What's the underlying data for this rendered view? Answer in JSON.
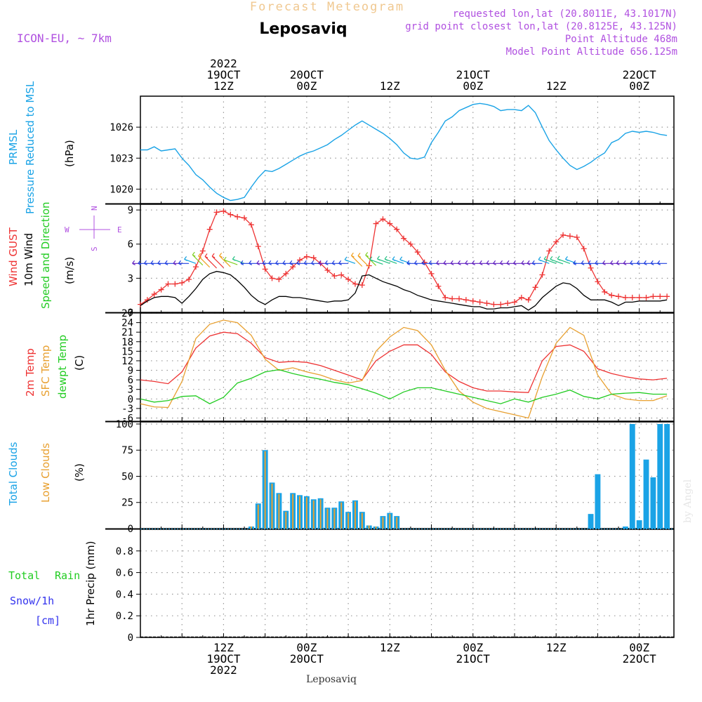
{
  "header": {
    "product": "Forecast Meteogram",
    "model": "ICON-EU, ~ 7km",
    "location": "Leposaviq",
    "requested": "requested lon,lat (20.8011E, 43.1017N)",
    "grid": "grid point closest lon,lat (20.8125E, 43.125N)",
    "point_alt": "Point Altitude 468m",
    "model_alt": "Model Point Altitude 656.125m",
    "footer_location": "Leposaviq",
    "watermark": "by Angel"
  },
  "colors": {
    "pressure": "#1aa3e6",
    "gust": "#ee3333",
    "wind10m": "#000000",
    "temp2m": "#ee3333",
    "sfc_temp": "#e8a030",
    "dewpt": "#22cc22",
    "total_clouds": "#1aa3e6",
    "low_clouds": "#e8a030",
    "rain": "#22cc22",
    "snow": "#3333ee",
    "header_purple": "#b050e0",
    "header_orange": "#f0c890"
  },
  "time_axis": {
    "top_labels": [
      {
        "t": 12,
        "lines": [
          "2022",
          "19OCT",
          "12Z"
        ]
      },
      {
        "t": 24,
        "lines": [
          "20OCT",
          "00Z"
        ]
      },
      {
        "t": 36,
        "lines": [
          "12Z"
        ]
      },
      {
        "t": 48,
        "lines": [
          "21OCT",
          "00Z"
        ]
      },
      {
        "t": 60,
        "lines": [
          "12Z"
        ]
      },
      {
        "t": 72,
        "lines": [
          "22OCT",
          "00Z"
        ]
      }
    ],
    "bottom_labels": [
      {
        "t": 12,
        "lines": [
          "12Z",
          "19OCT",
          "2022"
        ]
      },
      {
        "t": 24,
        "lines": [
          "00Z",
          "20OCT"
        ]
      },
      {
        "t": 36,
        "lines": [
          "12Z"
        ]
      },
      {
        "t": 48,
        "lines": [
          "00Z",
          "21OCT"
        ]
      },
      {
        "t": 60,
        "lines": [
          "12Z"
        ]
      },
      {
        "t": 72,
        "lines": [
          "00Z",
          "22OCT"
        ]
      }
    ],
    "t_range": [
      0,
      77
    ],
    "t_unit": "hours since 19OCT 00Z"
  },
  "panels": {
    "pressure": {
      "labels": [
        "PRMSL",
        "Pressure Reduced to MSL"
      ],
      "unit": "(hPa)",
      "yticks": [
        "1020",
        "1023",
        "1026"
      ]
    },
    "wind": {
      "labels": [
        "Wind GUST",
        "10m Wind",
        "Speed and Direction"
      ],
      "unit": "(m/s)",
      "yticks": [
        "0",
        "3",
        "6",
        "9"
      ],
      "compass_n": "N",
      "compass_s": "S",
      "compass_w": "W",
      "compass_e": "E"
    },
    "temp": {
      "labels": [
        "2m Temp",
        "SFC Temp",
        "dewpt Temp"
      ],
      "unit": "(C)",
      "yticks": [
        "-6",
        "-3",
        "0",
        "3",
        "6",
        "9",
        "12",
        "15",
        "18",
        "21",
        "24",
        "27"
      ]
    },
    "clouds": {
      "labels": [
        "Total Clouds",
        "Low Clouds"
      ],
      "unit": "(%)",
      "yticks": [
        "0",
        "25",
        "50",
        "75",
        "100"
      ]
    },
    "precip": {
      "labels": [
        "Total",
        "Rain",
        "Snow/1h",
        "[cm]"
      ],
      "unit": "1hr Precip (mm)",
      "yticks": [
        "0",
        "0.2",
        "0.4",
        "0.6",
        "0.8"
      ]
    }
  },
  "chart_data": [
    {
      "type": "line",
      "title": "PRMSL Pressure Reduced to MSL",
      "ylabel": "(hPa)",
      "ylim": [
        1018.6,
        1029
      ],
      "series": [
        {
          "name": "PRMSL",
          "color": "#1aa3e6",
          "x": [
            0,
            1,
            2,
            3,
            4,
            5,
            6,
            7,
            8,
            9,
            10,
            11,
            12,
            13,
            14,
            15,
            16,
            17,
            18,
            19,
            20,
            21,
            22,
            23,
            24,
            25,
            26,
            27,
            28,
            29,
            30,
            31,
            32,
            33,
            34,
            35,
            36,
            37,
            38,
            39,
            40,
            41,
            42,
            43,
            44,
            45,
            46,
            47,
            48,
            49,
            50,
            51,
            52,
            53,
            54,
            55,
            56,
            57,
            58,
            59,
            60,
            61,
            62,
            63,
            64,
            65,
            66,
            67,
            68,
            69,
            70,
            71,
            72,
            73,
            74,
            75,
            76
          ],
          "y": [
            1023.8,
            1023.8,
            1024.1,
            1023.7,
            1023.8,
            1023.9,
            1023.0,
            1022.3,
            1021.4,
            1020.9,
            1020.2,
            1019.6,
            1019.2,
            1018.9,
            1019.0,
            1019.2,
            1020.2,
            1021.1,
            1021.8,
            1021.7,
            1022.0,
            1022.4,
            1022.8,
            1023.2,
            1023.5,
            1023.7,
            1024.0,
            1024.3,
            1024.8,
            1025.2,
            1025.7,
            1026.2,
            1026.6,
            1026.2,
            1025.8,
            1025.4,
            1024.9,
            1024.3,
            1023.5,
            1023.0,
            1022.9,
            1023.1,
            1024.5,
            1025.5,
            1026.6,
            1027.0,
            1027.6,
            1027.9,
            1028.2,
            1028.3,
            1028.2,
            1028.0,
            1027.6,
            1027.7,
            1027.7,
            1027.6,
            1028.1,
            1027.4,
            1026.0,
            1024.7,
            1023.8,
            1023.0,
            1022.3,
            1021.9,
            1022.2,
            1022.6,
            1023.1,
            1023.5,
            1024.5,
            1024.8,
            1025.4,
            1025.6,
            1025.5,
            1025.6,
            1025.5,
            1025.3,
            1025.2
          ]
        }
      ]
    },
    {
      "type": "line",
      "title": "Wind GUST / 10m Wind Speed and Direction",
      "ylabel": "(m/s)",
      "ylim": [
        0,
        9.5
      ],
      "series": [
        {
          "name": "Wind GUST",
          "color": "#ee3333",
          "x": [
            0,
            1,
            2,
            3,
            4,
            5,
            6,
            7,
            8,
            9,
            10,
            11,
            12,
            13,
            14,
            15,
            16,
            17,
            18,
            19,
            20,
            21,
            22,
            23,
            24,
            25,
            26,
            27,
            28,
            29,
            30,
            31,
            32,
            33,
            34,
            35,
            36,
            37,
            38,
            39,
            40,
            41,
            42,
            43,
            44,
            45,
            46,
            47,
            48,
            49,
            50,
            51,
            52,
            53,
            54,
            55,
            56,
            57,
            58,
            59,
            60,
            61,
            62,
            63,
            64,
            65,
            66,
            67,
            68,
            69,
            70,
            71,
            72,
            73,
            74,
            75,
            76
          ],
          "y": [
            0.7,
            1.1,
            1.6,
            2.0,
            2.5,
            2.5,
            2.6,
            2.9,
            4.0,
            5.4,
            7.3,
            8.8,
            8.9,
            8.6,
            8.4,
            8.3,
            7.7,
            5.8,
            3.8,
            3.0,
            2.9,
            3.4,
            4.0,
            4.6,
            4.9,
            4.8,
            4.3,
            3.7,
            3.2,
            3.3,
            2.9,
            2.5,
            2.4,
            4.1,
            7.8,
            8.2,
            7.8,
            7.3,
            6.5,
            6.0,
            5.3,
            4.4,
            3.4,
            2.3,
            1.3,
            1.2,
            1.2,
            1.1,
            1.0,
            0.9,
            0.8,
            0.7,
            0.7,
            0.8,
            0.9,
            1.3,
            1.1,
            2.2,
            3.3,
            5.4,
            6.2,
            6.8,
            6.7,
            6.6,
            5.6,
            3.9,
            2.7,
            1.8,
            1.5,
            1.4,
            1.3,
            1.3,
            1.3,
            1.3,
            1.4,
            1.4,
            1.4
          ]
        },
        {
          "name": "10m Wind",
          "color": "#000000",
          "x": [
            0,
            1,
            2,
            3,
            4,
            5,
            6,
            7,
            8,
            9,
            10,
            11,
            12,
            13,
            14,
            15,
            16,
            17,
            18,
            19,
            20,
            21,
            22,
            23,
            24,
            25,
            26,
            27,
            28,
            29,
            30,
            31,
            32,
            33,
            34,
            35,
            36,
            37,
            38,
            39,
            40,
            41,
            42,
            43,
            44,
            45,
            46,
            47,
            48,
            49,
            50,
            51,
            52,
            53,
            54,
            55,
            56,
            57,
            58,
            59,
            60,
            61,
            62,
            63,
            64,
            65,
            66,
            67,
            68,
            69,
            70,
            71,
            72,
            73,
            74,
            75,
            76
          ],
          "y": [
            0.6,
            1.0,
            1.3,
            1.4,
            1.4,
            1.3,
            0.8,
            1.4,
            2.1,
            2.9,
            3.4,
            3.6,
            3.5,
            3.3,
            2.8,
            2.2,
            1.5,
            1.0,
            0.7,
            1.1,
            1.4,
            1.4,
            1.3,
            1.3,
            1.2,
            1.1,
            1.0,
            0.9,
            1.0,
            1.0,
            1.1,
            1.7,
            3.2,
            3.3,
            3.0,
            2.7,
            2.5,
            2.3,
            2.0,
            1.8,
            1.5,
            1.3,
            1.1,
            1.0,
            0.9,
            0.8,
            0.7,
            0.6,
            0.5,
            0.5,
            0.3,
            0.3,
            0.4,
            0.4,
            0.5,
            0.6,
            0.2,
            0.6,
            1.3,
            1.8,
            2.3,
            2.6,
            2.5,
            2.1,
            1.5,
            1.1,
            1.1,
            1.1,
            0.9,
            0.6,
            0.9,
            0.9,
            1.0,
            1.0,
            1.0,
            1.0,
            1.1
          ]
        }
      ]
    },
    {
      "type": "line",
      "title": "2m Temp / SFC Temp / dewpt Temp",
      "ylabel": "(C)",
      "ylim": [
        -7,
        27
      ],
      "series": [
        {
          "name": "2m Temp",
          "color": "#ee3333",
          "x": [
            0,
            2,
            4,
            6,
            8,
            10,
            12,
            14,
            16,
            18,
            20,
            22,
            24,
            26,
            28,
            30,
            32,
            34,
            36,
            38,
            40,
            42,
            44,
            46,
            48,
            50,
            52,
            54,
            56,
            58,
            60,
            62,
            64,
            66,
            68,
            70,
            72,
            74,
            76
          ],
          "y": [
            6.0,
            5.5,
            4.8,
            8.5,
            16.0,
            19.8,
            21.0,
            20.5,
            17.5,
            13.0,
            11.5,
            11.8,
            11.5,
            10.5,
            9.0,
            7.5,
            6.0,
            12.0,
            15.0,
            17.0,
            17.0,
            14.0,
            8.5,
            5.5,
            3.5,
            2.5,
            2.5,
            2.2,
            2.0,
            12.0,
            16.5,
            17.0,
            15.0,
            9.5,
            8.0,
            7.0,
            6.3,
            6.0,
            6.5
          ]
        },
        {
          "name": "SFC Temp",
          "color": "#e8a030",
          "x": [
            0,
            2,
            4,
            6,
            8,
            10,
            12,
            14,
            16,
            18,
            20,
            22,
            24,
            26,
            28,
            30,
            32,
            34,
            36,
            38,
            40,
            42,
            44,
            46,
            48,
            50,
            52,
            54,
            56,
            58,
            60,
            62,
            64,
            66,
            68,
            70,
            72,
            74,
            76
          ],
          "y": [
            -1.5,
            -2.5,
            -2.7,
            5.5,
            19.0,
            23.5,
            24.8,
            24.0,
            20.0,
            12.5,
            9.0,
            9.8,
            8.5,
            7.5,
            6.0,
            5.0,
            5.8,
            15.0,
            19.5,
            22.5,
            21.5,
            17.0,
            9.0,
            2.5,
            -1.0,
            -3.0,
            -4.0,
            -5.0,
            -6.0,
            7.0,
            17.5,
            22.5,
            20.0,
            7.5,
            1.5,
            0.0,
            -0.5,
            -0.5,
            1.0
          ]
        },
        {
          "name": "dewpt Temp",
          "color": "#22cc22",
          "x": [
            0,
            2,
            4,
            6,
            8,
            10,
            12,
            14,
            16,
            18,
            20,
            22,
            24,
            26,
            28,
            30,
            32,
            34,
            36,
            38,
            40,
            42,
            44,
            46,
            48,
            50,
            52,
            54,
            56,
            58,
            60,
            62,
            64,
            66,
            68,
            70,
            72,
            74,
            76
          ],
          "y": [
            0.0,
            -1.0,
            -0.5,
            0.8,
            1.0,
            -1.5,
            0.5,
            5.0,
            6.5,
            8.5,
            9.2,
            8.0,
            7.0,
            6.2,
            5.2,
            4.5,
            3.2,
            1.8,
            0.0,
            2.2,
            3.5,
            3.5,
            2.5,
            1.5,
            0.5,
            -0.5,
            -1.5,
            0.0,
            -1.0,
            0.5,
            1.5,
            2.8,
            0.8,
            0.0,
            1.5,
            1.8,
            2.0,
            1.5,
            1.5
          ]
        }
      ]
    },
    {
      "type": "bar",
      "title": "Total Clouds / Low Clouds",
      "ylabel": "(%)",
      "ylim": [
        0,
        102
      ],
      "x": [
        16,
        17,
        18,
        19,
        20,
        21,
        22,
        23,
        24,
        25,
        26,
        27,
        28,
        29,
        30,
        31,
        32,
        33,
        34,
        35,
        36,
        37,
        65,
        66,
        67,
        68,
        69,
        70,
        71,
        72,
        73,
        74,
        75,
        76
      ],
      "series": [
        {
          "name": "Total Clouds",
          "color": "#1aa3e6",
          "values": [
            2,
            24,
            75,
            44,
            34,
            17,
            34,
            32,
            31,
            28,
            29,
            20,
            20,
            26,
            16,
            27,
            16,
            3,
            2,
            12,
            15,
            12,
            14,
            52,
            0,
            0,
            0,
            2,
            100,
            8,
            66,
            49,
            100,
            100
          ]
        },
        {
          "name": "Low Clouds",
          "color": "#e8a030",
          "values": [
            2,
            23,
            74,
            43,
            33,
            16,
            33,
            31,
            30,
            27,
            28,
            19,
            19,
            25,
            15,
            26,
            15,
            3,
            2,
            11,
            14,
            11,
            0,
            0,
            0,
            0,
            0,
            0,
            0,
            0,
            0,
            0,
            0,
            0
          ]
        }
      ]
    },
    {
      "type": "bar",
      "title": "1hr Precip (mm)",
      "ylabel": "1hr Precip (mm)",
      "ylim": [
        0,
        1.0
      ],
      "x": [],
      "series": [
        {
          "name": "Total Rain",
          "color": "#22cc22",
          "values": []
        },
        {
          "name": "Snow/1h",
          "color": "#3333ee",
          "values": []
        }
      ]
    }
  ]
}
